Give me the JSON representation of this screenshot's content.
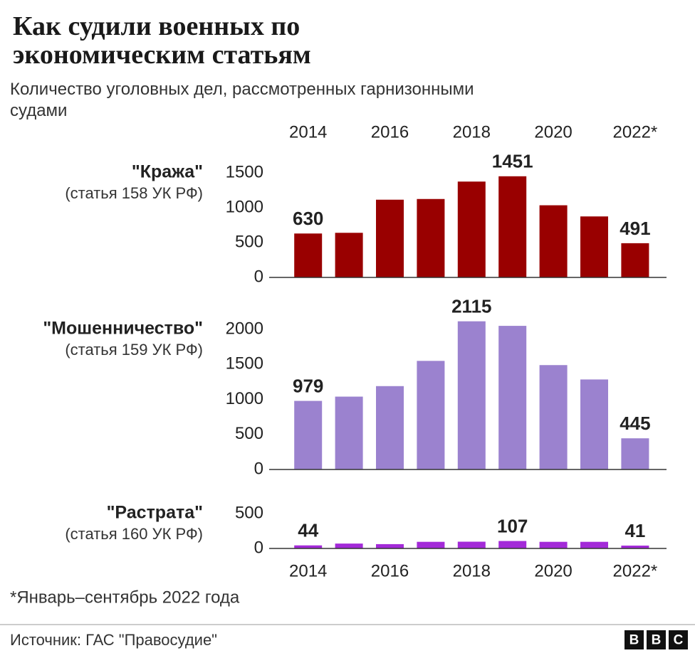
{
  "title": "Как судили военных по экономическим статьям",
  "subtitle": "Количество уголовных дел, рассмотренных гарнизонными судами",
  "note": "*Январь–сентябрь 2022 года",
  "source": "Источник: ГАС \"Правосудие\"",
  "logo": [
    "B",
    "B",
    "C"
  ],
  "chart_data": [
    {
      "type": "bar",
      "label": "\"Кража\"",
      "sublabel": "(статья 158 УК РФ)",
      "categories": [
        "2014",
        null,
        "2016",
        null,
        "2018",
        null,
        "2020",
        null,
        "2022*"
      ],
      "values": [
        630,
        640,
        1115,
        1125,
        1375,
        1451,
        1035,
        875,
        491
      ],
      "value_labels": [
        "630",
        null,
        null,
        null,
        null,
        "1451",
        null,
        null,
        "491"
      ],
      "color": "#990000",
      "ylim": [
        0,
        1500
      ],
      "yticks": [
        0,
        500,
        1000,
        1500
      ]
    },
    {
      "type": "bar",
      "label": "\"Мошенничество\"",
      "sublabel": "(статья 159 УК РФ)",
      "categories": [
        "2014",
        null,
        "2016",
        null,
        "2018",
        null,
        "2020",
        null,
        "2022*"
      ],
      "values": [
        979,
        1040,
        1190,
        1550,
        2115,
        2050,
        1490,
        1285,
        445
      ],
      "value_labels": [
        "979",
        null,
        null,
        null,
        "2115",
        null,
        null,
        null,
        "445"
      ],
      "color": "#9b82cf",
      "ylim": [
        0,
        2000
      ],
      "yticks": [
        0,
        500,
        1000,
        1500,
        2000
      ]
    },
    {
      "type": "bar",
      "label": "\"Растрата\"",
      "sublabel": "(статья 160 УК РФ)",
      "categories": [
        "2014",
        null,
        "2016",
        null,
        "2018",
        null,
        "2020",
        null,
        "2022*"
      ],
      "values": [
        44,
        70,
        62,
        95,
        97,
        107,
        95,
        95,
        41
      ],
      "value_labels": [
        "44",
        null,
        null,
        null,
        null,
        "107",
        null,
        null,
        "41"
      ],
      "color": "#a32ad8",
      "ylim": [
        0,
        500
      ],
      "yticks": [
        0,
        500
      ]
    }
  ]
}
